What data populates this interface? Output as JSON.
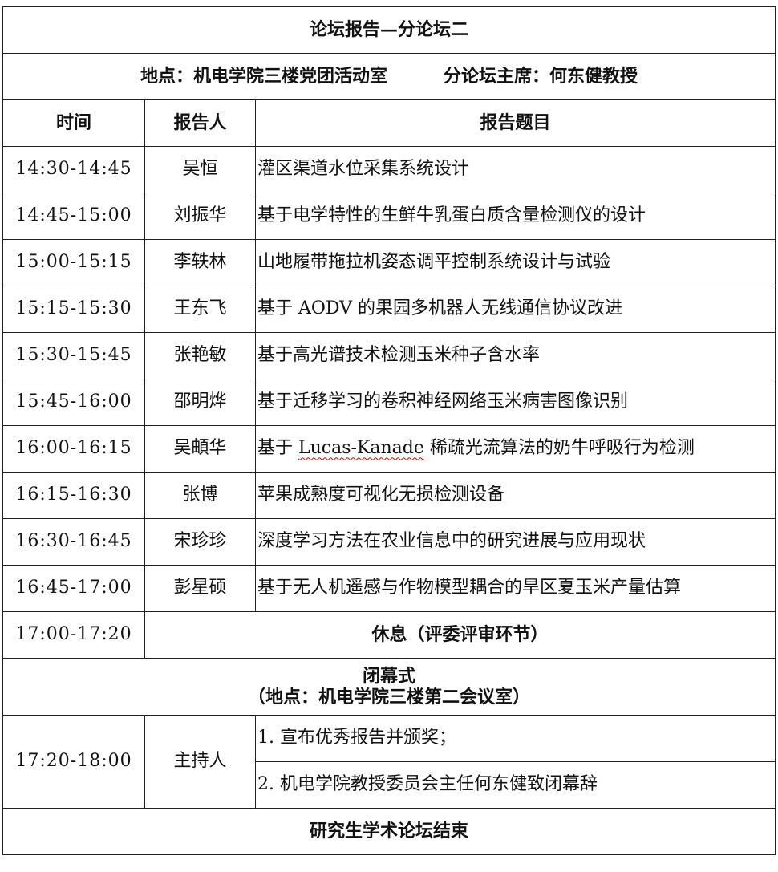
{
  "title": "论坛报告—分论坛二",
  "location_line": {
    "location": "地点：机电学院三楼党团活动室",
    "chair": "分论坛主席：何东健教授"
  },
  "headers": {
    "time": "时间",
    "speaker": "报告人",
    "topic": "报告题目"
  },
  "rows": [
    {
      "time": "14:30-14:45",
      "speaker": "吴恒",
      "topic": "灌区渠道水位采集系统设计"
    },
    {
      "time": "14:45-15:00",
      "speaker": "刘振华",
      "topic": "基于电学特性的生鲜牛乳蛋白质含量检测仪的设计"
    },
    {
      "time": "15:00-15:15",
      "speaker": "李轶林",
      "topic": "山地履带拖拉机姿态调平控制系统设计与试验"
    },
    {
      "time": "15:15-15:30",
      "speaker": "王东飞",
      "topic": "基于 AODV 的果园多机器人无线通信协议改进"
    },
    {
      "time": "15:30-15:45",
      "speaker": "张艳敏",
      "topic": "基于高光谱技术检测玉米种子含水率"
    },
    {
      "time": "15:45-16:00",
      "speaker": "邵明烨",
      "topic": "基于迁移学习的卷积神经网络玉米病害图像识别"
    },
    {
      "time": "16:00-16:15",
      "speaker": "吴頔华",
      "topic_pre": "基于 ",
      "topic_flagged": "Lucas-Kanade",
      "topic_post": " 稀疏光流算法的奶牛呼吸行为检测"
    },
    {
      "time": "16:15-16:30",
      "speaker": "张博",
      "topic": "苹果成熟度可视化无损检测设备"
    },
    {
      "time": "16:30-16:45",
      "speaker": "宋珍珍",
      "topic": "深度学习方法在农业信息中的研究进展与应用现状"
    },
    {
      "time": "16:45-17:00",
      "speaker": "彭星硕",
      "topic": "基于无人机遥感与作物模型耦合的旱区夏玉米产量估算"
    }
  ],
  "break": {
    "time": "17:00-17:20",
    "label": "休息（评委评审环节）"
  },
  "closing": {
    "title": "闭幕式",
    "location": "（地点：机电学院三楼第二会议室）",
    "time": "17:20-18:00",
    "host": "主持人",
    "items": [
      "1. 宣布优秀报告并颁奖；",
      "2. 机电学院教授委员会主任何东健致闭幕辞"
    ]
  },
  "footer": "研究生学术论坛结束",
  "colors": {
    "border": "#222222",
    "spellcheck_underline": "#dd0000"
  }
}
